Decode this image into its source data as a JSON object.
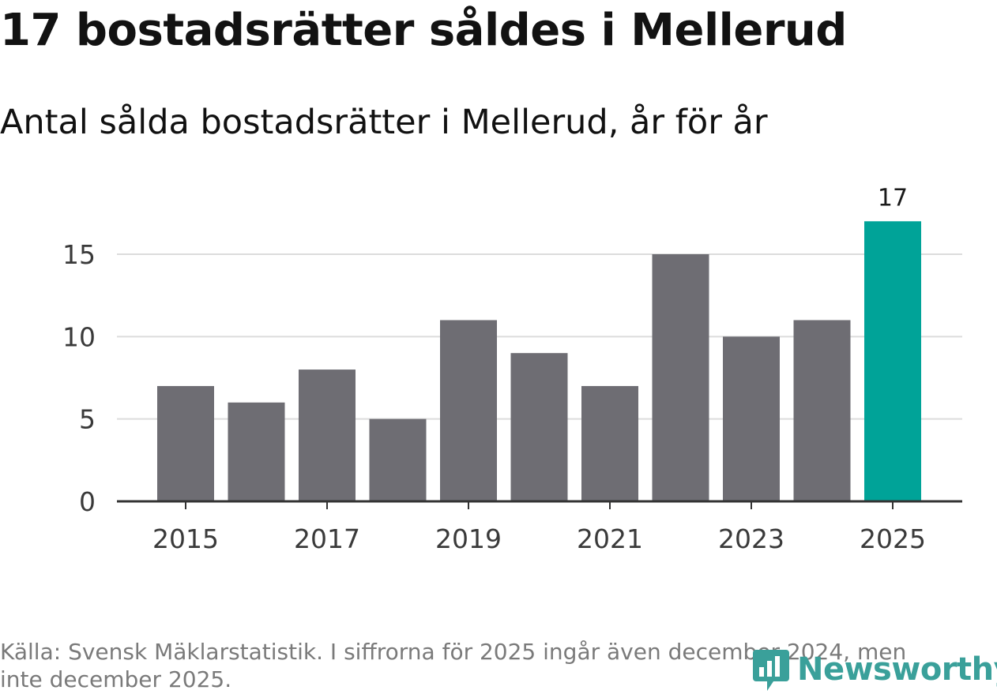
{
  "chart_data": {
    "type": "bar",
    "title": "17 bostadsrätter såldes i Mellerud",
    "subtitle": "Antal sålda bostadsrätter i Mellerud, år för år",
    "categories": [
      "2015",
      "2016",
      "2017",
      "2018",
      "2019",
      "2020",
      "2021",
      "2022",
      "2023",
      "2024",
      "2025"
    ],
    "values": [
      7,
      6,
      8,
      5,
      11,
      9,
      7,
      15,
      10,
      11,
      17
    ],
    "x_tick_labels": [
      "2015",
      "2017",
      "2019",
      "2021",
      "2023",
      "2025"
    ],
    "y_ticks": [
      0,
      5,
      10,
      15
    ],
    "y_tick_labels": [
      "0",
      "5",
      "10",
      "15"
    ],
    "ylim": [
      0,
      17
    ],
    "highlight_category": "2025",
    "highlight_label": "17",
    "xlabel": "",
    "ylabel": "",
    "grid": true,
    "colors": {
      "bar": "#6e6d73",
      "highlight": "#00a398",
      "grid": "#dcdcdc",
      "axis": "#333333"
    }
  },
  "source_text": "Källa: Svensk Mäklarstatistik. I siffrorna för 2025 ingår även december 2024, men inte december 2025.",
  "logo": {
    "text": "Newsworthy",
    "color": "#3aa09a"
  }
}
